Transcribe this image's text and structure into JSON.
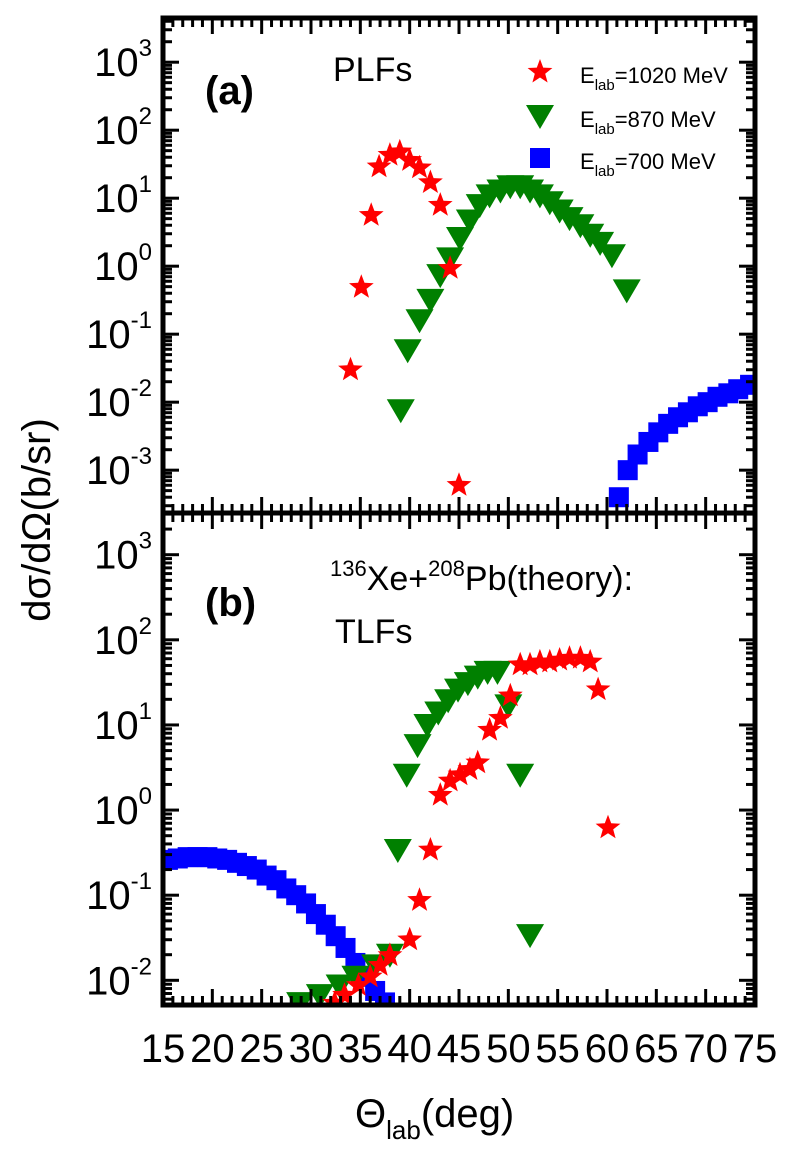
{
  "chart_data": {
    "type": "scatter",
    "xlabel": "Θlab(deg)",
    "xlabel_main": "Θ",
    "xlabel_sub": "lab",
    "xlabel_tail": "(deg)",
    "ylabel": "dσ/dΩ(b/sr)",
    "x_range": [
      15,
      75
    ],
    "x_ticks": [
      15,
      20,
      25,
      30,
      35,
      40,
      45,
      50,
      55,
      60,
      65,
      70,
      75
    ],
    "x_tick_labels": [
      "15",
      "20",
      "25",
      "30",
      "35",
      "40",
      "45",
      "50",
      "55",
      "60",
      "65",
      "70",
      "75"
    ],
    "yscale": "log",
    "grid": false,
    "legend": {
      "placement": "top-right",
      "panel": "a",
      "entries": [
        {
          "series": "1020",
          "prefix": "E",
          "sub": "lab",
          "suffix": "=1020 MeV",
          "marker": "star",
          "color": "#ff0000"
        },
        {
          "series": "870",
          "prefix": "E",
          "sub": "lab",
          "suffix": "=870 MeV",
          "marker": "triangle-down",
          "color": "#008000"
        },
        {
          "series": "700",
          "prefix": "E",
          "sub": "lab",
          "suffix": "=700 MeV",
          "marker": "square",
          "color": "#0000ff"
        }
      ]
    },
    "panels": [
      {
        "id": "a",
        "panel_label": "(a)",
        "annotation": "PLFs",
        "ylim_exp": [
          -3.63,
          3.65
        ],
        "y_ticks_exp": [
          3,
          2,
          1,
          0,
          -1,
          -2,
          -3
        ],
        "series": [
          {
            "name": "Elab=1020 MeV",
            "marker": "star",
            "color": "#ff0000",
            "points": [
              [
                34.0,
                0.03
              ],
              [
                35.1,
                0.49
              ],
              [
                36.1,
                5.6
              ],
              [
                36.9,
                29
              ],
              [
                38.0,
                43
              ],
              [
                39.0,
                48
              ],
              [
                40.0,
                36
              ],
              [
                41.0,
                28
              ],
              [
                42.1,
                17
              ],
              [
                43.1,
                7.9
              ],
              [
                44.1,
                0.93
              ],
              [
                45.0,
                0.0006
              ]
            ]
          },
          {
            "name": "Elab=870 MeV",
            "marker": "triangle-down",
            "color": "#008000",
            "points": [
              [
                39.1,
                0.0076
              ],
              [
                39.8,
                0.058
              ],
              [
                41.0,
                0.16
              ],
              [
                42.1,
                0.32
              ],
              [
                43.1,
                0.74
              ],
              [
                44.1,
                1.3
              ],
              [
                45.1,
                2.6
              ],
              [
                46.1,
                4.7
              ],
              [
                47.1,
                7.9
              ],
              [
                48.1,
                11
              ],
              [
                49.2,
                13
              ],
              [
                50.2,
                15
              ],
              [
                51.2,
                15
              ],
              [
                52.2,
                13
              ],
              [
                53.2,
                11
              ],
              [
                54.2,
                8.7
              ],
              [
                55.2,
                6.6
              ],
              [
                56.2,
                5.1
              ],
              [
                57.3,
                4.0
              ],
              [
                58.3,
                2.9
              ],
              [
                59.3,
                2.2
              ],
              [
                60.5,
                1.45
              ],
              [
                62.0,
                0.44
              ]
            ]
          },
          {
            "name": "Elab=700 MeV",
            "marker": "square",
            "color": "#0000ff",
            "points": [
              [
                61.2,
                0.0004
              ],
              [
                62.1,
                0.001
              ],
              [
                63.1,
                0.0017
              ],
              [
                64.2,
                0.0026
              ],
              [
                65.2,
                0.0036
              ],
              [
                66.2,
                0.0048
              ],
              [
                67.2,
                0.006
              ],
              [
                68.2,
                0.0071
              ],
              [
                69.2,
                0.0087
              ],
              [
                70.2,
                0.01
              ],
              [
                71.2,
                0.012
              ],
              [
                72.3,
                0.0135
              ],
              [
                73.3,
                0.0155
              ],
              [
                74.5,
                0.018
              ]
            ]
          }
        ]
      },
      {
        "id": "b",
        "panel_label": "(b)",
        "annotation_parts": {
          "sup1": "136",
          "t1": "Xe+",
          "sup2": "208",
          "t2": "Pb(theory):"
        },
        "annotation2": "TLFs",
        "ylim_exp": [
          -2.29,
          3.49
        ],
        "y_ticks_exp": [
          3,
          2,
          1,
          0,
          -1,
          -2
        ],
        "series": [
          {
            "name": "Elab=1020 MeV",
            "marker": "star",
            "color": "#ff0000",
            "points": [
              [
                32.4,
                0.0054
              ],
              [
                33.4,
                0.0067
              ],
              [
                34.8,
                0.0087
              ],
              [
                36.0,
                0.011
              ],
              [
                37.0,
                0.015
              ],
              [
                38.0,
                0.0196
              ],
              [
                40.0,
                0.03
              ],
              [
                41.0,
                0.087
              ],
              [
                42.1,
                0.34
              ],
              [
                43.1,
                1.5
              ],
              [
                44.1,
                2.2
              ],
              [
                45.1,
                2.6
              ],
              [
                46.1,
                3.0
              ],
              [
                46.9,
                3.6
              ],
              [
                48.1,
                8.7
              ],
              [
                49.2,
                12
              ],
              [
                50.2,
                22
              ],
              [
                51.2,
                51
              ],
              [
                52.2,
                51
              ],
              [
                53.2,
                55
              ],
              [
                54.2,
                55
              ],
              [
                55.2,
                58
              ],
              [
                56.2,
                61
              ],
              [
                57.3,
                61
              ],
              [
                58.3,
                55
              ],
              [
                59.1,
                26
              ],
              [
                60.1,
                0.62
              ]
            ]
          },
          {
            "name": "Elab=870 MeV",
            "marker": "triangle-down",
            "color": "#008000",
            "points": [
              [
                28.9,
                0.0054
              ],
              [
                30.9,
                0.0067
              ],
              [
                32.9,
                0.0087
              ],
              [
                34.5,
                0.011
              ],
              [
                36.5,
                0.015
              ],
              [
                38.0,
                0.02
              ],
              [
                38.8,
                0.34
              ],
              [
                39.7,
                2.6
              ],
              [
                40.8,
                5.8
              ],
              [
                41.8,
                10
              ],
              [
                42.9,
                14
              ],
              [
                43.9,
                19.5
              ],
              [
                44.9,
                26
              ],
              [
                45.9,
                31
              ],
              [
                46.9,
                37
              ],
              [
                47.9,
                42
              ],
              [
                48.9,
                42
              ],
              [
                50.0,
                17
              ],
              [
                51.2,
                2.6
              ],
              [
                52.2,
                0.034
              ]
            ]
          },
          {
            "name": "Elab=700 MeV",
            "marker": "square",
            "color": "#0000ff",
            "points": [
              [
                15.5,
                0.26
              ],
              [
                16.5,
                0.27
              ],
              [
                17.5,
                0.28
              ],
              [
                18.5,
                0.28
              ],
              [
                19.5,
                0.28
              ],
              [
                20.5,
                0.27
              ],
              [
                21.5,
                0.26
              ],
              [
                22.5,
                0.24
              ],
              [
                23.5,
                0.22
              ],
              [
                24.5,
                0.2
              ],
              [
                25.5,
                0.17
              ],
              [
                26.5,
                0.15
              ],
              [
                27.5,
                0.12
              ],
              [
                28.5,
                0.1
              ],
              [
                29.5,
                0.08
              ],
              [
                30.5,
                0.06
              ],
              [
                31.5,
                0.045
              ],
              [
                32.5,
                0.033
              ],
              [
                33.5,
                0.024
              ],
              [
                34.5,
                0.016
              ],
              [
                35.5,
                0.011
              ],
              [
                36.5,
                0.0075
              ],
              [
                37.5,
                0.0055
              ]
            ]
          }
        ]
      }
    ]
  }
}
